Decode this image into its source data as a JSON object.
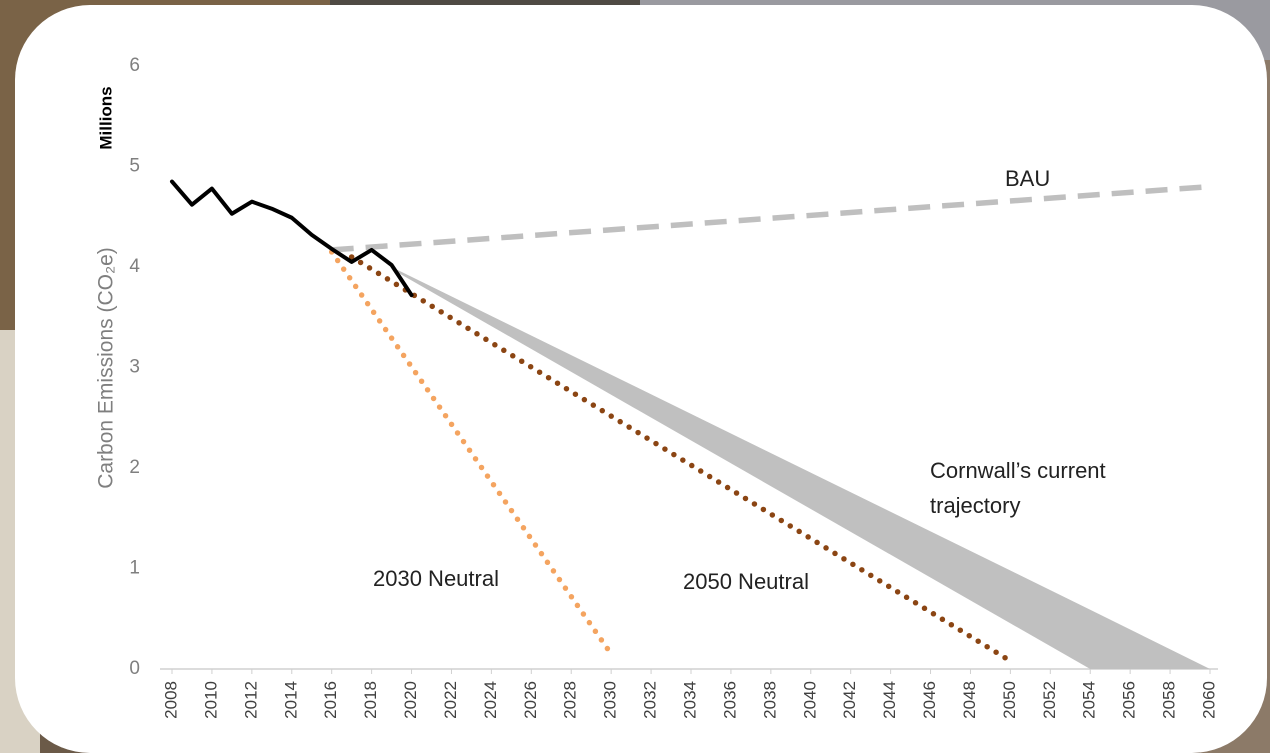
{
  "chart_data": {
    "type": "line",
    "y_label": "Carbon Emissions (CO₂e)",
    "y_unit": "Millions",
    "xlim": [
      2008,
      2060
    ],
    "ylim": [
      0,
      6
    ],
    "xticks": [
      2008,
      2010,
      2012,
      2014,
      2016,
      2018,
      2020,
      2022,
      2024,
      2026,
      2028,
      2030,
      2032,
      2034,
      2036,
      2038,
      2040,
      2042,
      2044,
      2046,
      2048,
      2050,
      2052,
      2054,
      2056,
      2058,
      2060
    ],
    "yticks": [
      0,
      1,
      2,
      3,
      4,
      5,
      6
    ],
    "series": [
      {
        "type": "area",
        "name_lines": [
          "Cornwall’s current",
          "trajectory"
        ],
        "color": "#c0c0c0",
        "x": [
          2019,
          2054,
          2060
        ],
        "upper": [
          4.0,
          0.59,
          0
        ],
        "lower": [
          3.98,
          0,
          0
        ]
      },
      {
        "name": "BAU",
        "color": "#bfbfbf",
        "style": "dashed",
        "x": [
          2016,
          2060
        ],
        "values": [
          4.17,
          4.8
        ]
      },
      {
        "name": "2030 Neutral",
        "color": "#f4a460",
        "style": "dotted",
        "x": [
          2016,
          2030
        ],
        "values": [
          4.15,
          0.15
        ]
      },
      {
        "name": "2050 Neutral",
        "color": "#8b4513",
        "style": "dotted",
        "x": [
          2017,
          2050
        ],
        "values": [
          4.1,
          0.08
        ]
      },
      {
        "color": "#000000",
        "style": "solid",
        "x": [
          2008,
          2009,
          2010,
          2011,
          2012,
          2013,
          2014,
          2015,
          2016,
          2017,
          2018,
          2019,
          2020
        ],
        "values": [
          4.85,
          4.62,
          4.78,
          4.53,
          4.65,
          4.58,
          4.49,
          4.32,
          4.18,
          4.05,
          4.17,
          4.02,
          3.72
        ]
      }
    ]
  }
}
